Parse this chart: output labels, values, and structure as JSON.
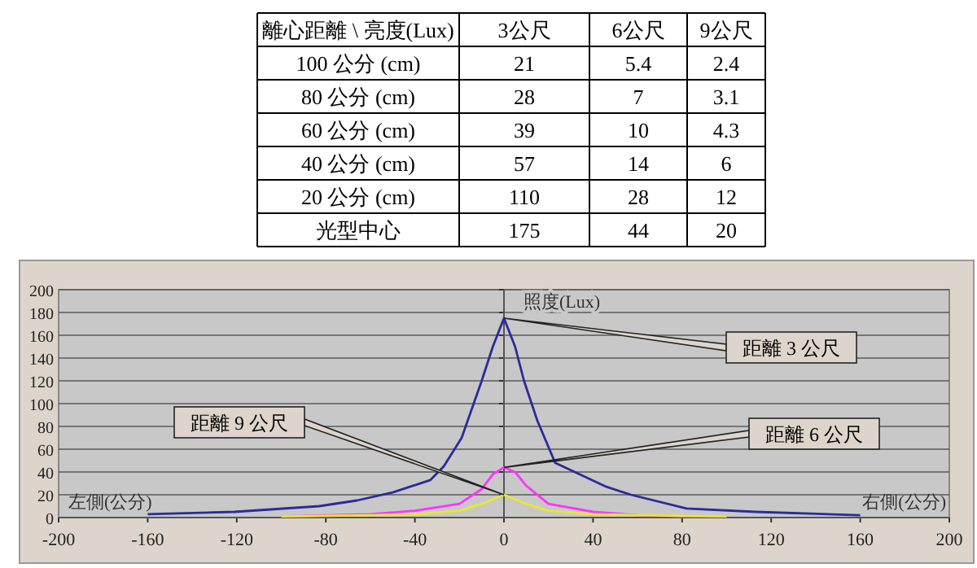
{
  "chart_data": [
    {
      "type": "other",
      "xlabel": "離心距離 \\ 亮度(Lux)",
      "categories": [
        "100 公分 (cm)",
        "80 公分 (cm)",
        "60 公分 (cm)",
        "40 公分 (cm)",
        "20 公分 (cm)",
        "光型中心"
      ],
      "series": [
        {
          "name": "3公尺",
          "values": [
            21,
            28,
            39,
            57,
            110,
            175
          ]
        },
        {
          "name": "6公尺",
          "values": [
            5.4,
            7,
            10,
            14,
            28,
            44
          ]
        },
        {
          "name": "9公尺",
          "values": [
            2.4,
            3.1,
            4.3,
            6,
            12,
            20
          ]
        }
      ],
      "data_labels": true
    },
    {
      "type": "line",
      "ylabel": "照度(Lux)",
      "xlim": [
        -200,
        200
      ],
      "xticks": [
        -200,
        -160,
        -120,
        -80,
        -40,
        0,
        40,
        80,
        120,
        160,
        200
      ],
      "ylim": [
        0,
        200
      ],
      "yticks": [
        0,
        20,
        40,
        60,
        80,
        100,
        120,
        140,
        160,
        180,
        200
      ],
      "grid": "y",
      "annotations": [
        "左側(公分)",
        "右側(公分)"
      ],
      "series": [
        {
          "name": "距離 3 公尺",
          "color": "#2b2b9a",
          "x": [
            -160,
            -121,
            -83,
            -66,
            -50,
            -33,
            -27,
            -19,
            -10,
            -5,
            0,
            5,
            9,
            15,
            23,
            46,
            57,
            82,
            113,
            160
          ],
          "values": [
            3,
            5,
            10,
            15,
            22,
            33,
            45,
            70,
            120,
            150,
            175,
            150,
            120,
            85,
            48,
            27,
            20,
            8,
            5,
            2
          ]
        },
        {
          "name": "距離 6 公尺",
          "color": "#ff33ff",
          "x": [
            -100,
            -60,
            -40,
            -20,
            -10,
            -5,
            0,
            5,
            10,
            20,
            40,
            60,
            80,
            100
          ],
          "values": [
            1,
            3,
            6,
            12,
            25,
            38,
            44,
            40,
            28,
            12,
            5,
            2,
            1,
            1
          ]
        },
        {
          "name": "距離 9 公尺",
          "color": "#e8e833",
          "x": [
            -100,
            -60,
            -40,
            -20,
            -10,
            0,
            10,
            20,
            40,
            60,
            100
          ],
          "values": [
            1,
            2,
            3,
            6,
            12,
            20,
            12,
            6,
            3,
            2,
            1
          ]
        }
      ]
    }
  ]
}
